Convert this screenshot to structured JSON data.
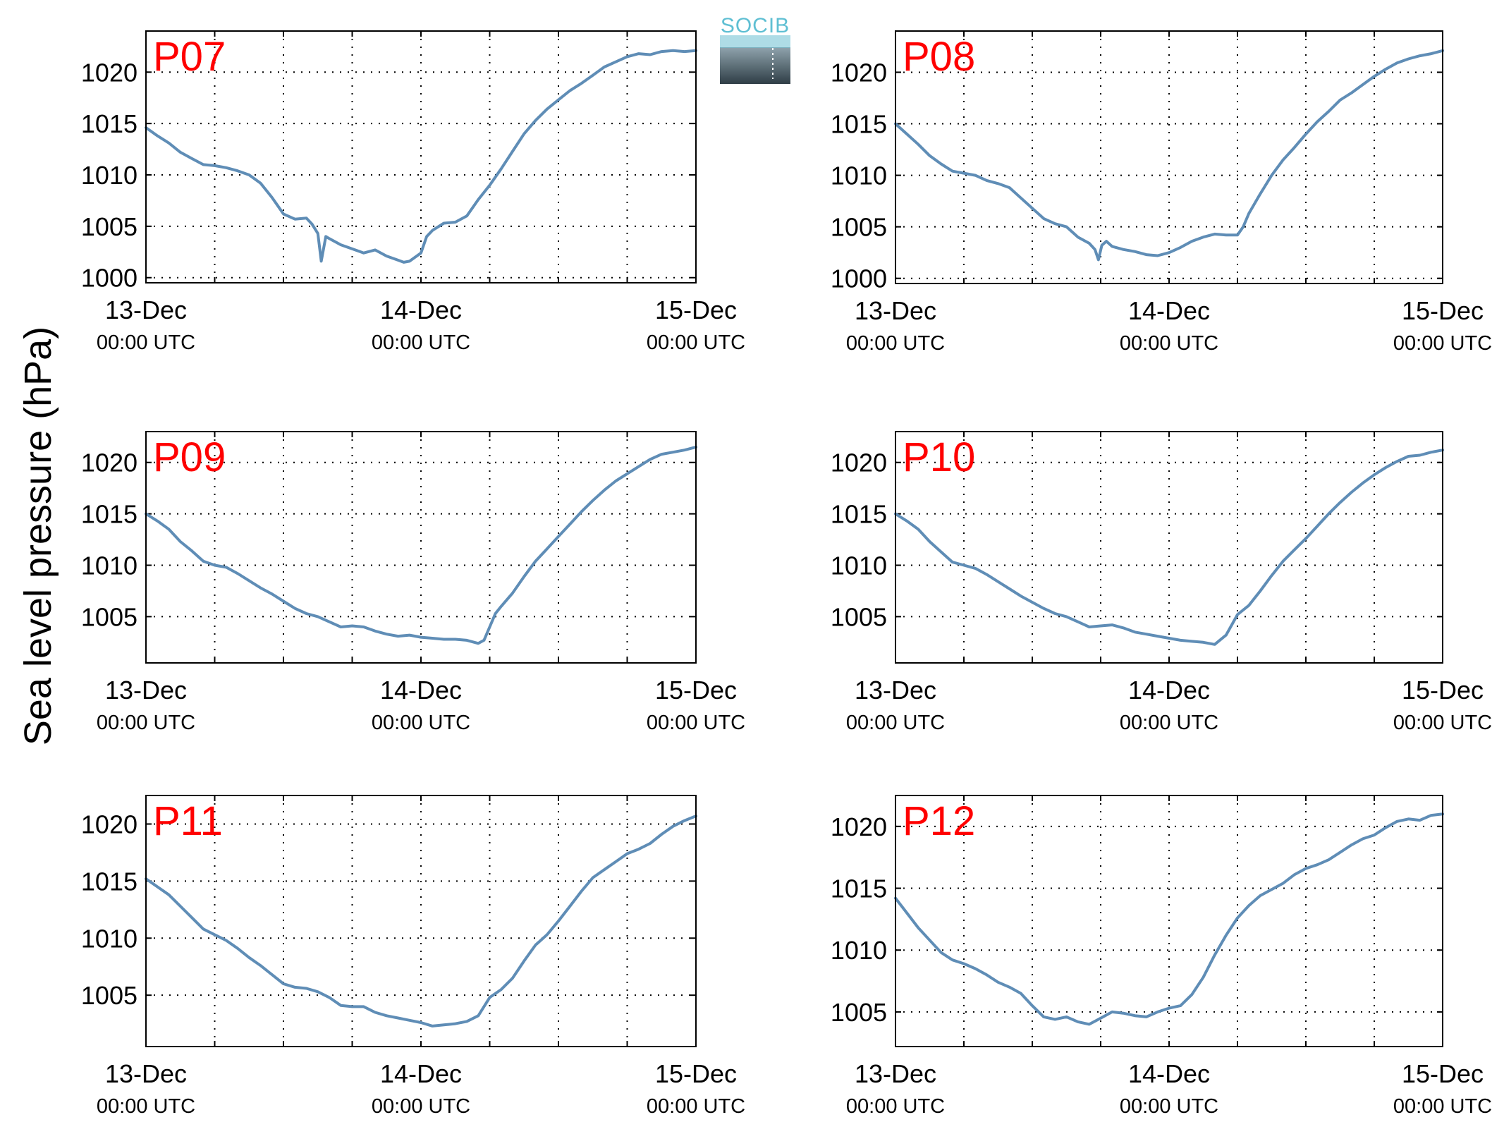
{
  "figure": {
    "ylabel": "Sea level pressure (hPa)",
    "logo_text": "SOCIB",
    "line_color": "#5f8db6",
    "title_color": "#ff0000"
  },
  "chart_data": [
    {
      "type": "line",
      "title": "P07",
      "x_ticks": [
        {
          "date": "13-Dec",
          "time": "00:00 UTC"
        },
        {
          "date": "14-Dec",
          "time": "00:00 UTC"
        },
        {
          "date": "15-Dec",
          "time": "00:00 UTC"
        }
      ],
      "y_ticks": [
        1000,
        1005,
        1010,
        1015,
        1020
      ],
      "xlim_hours": [
        0,
        48
      ],
      "ylim": [
        999.5,
        1024
      ],
      "grid": true,
      "series": [
        {
          "x_hours": [
            0,
            1,
            2,
            3,
            4,
            5,
            6,
            7,
            8,
            9,
            10,
            11,
            11.5,
            12,
            13,
            14,
            14.5,
            15,
            15.3,
            15.7,
            16,
            17,
            18,
            19,
            20,
            21,
            22,
            22.5,
            23,
            24,
            24.5,
            25,
            26,
            27,
            28,
            29,
            30,
            31,
            32,
            33,
            34,
            35,
            36,
            37,
            38,
            39,
            40,
            41,
            42,
            43,
            44,
            45,
            46,
            47,
            48
          ],
          "values": [
            1014.6,
            1013.8,
            1013.1,
            1012.2,
            1011.6,
            1011.0,
            1010.9,
            1010.7,
            1010.4,
            1010.0,
            1009.2,
            1007.8,
            1007.0,
            1006.2,
            1005.7,
            1005.8,
            1005.2,
            1004.3,
            1001.6,
            1004.0,
            1003.8,
            1003.2,
            1002.8,
            1002.4,
            1002.7,
            1002.1,
            1001.7,
            1001.5,
            1001.6,
            1002.4,
            1004.0,
            1004.6,
            1005.3,
            1005.4,
            1006.0,
            1007.6,
            1009.0,
            1010.6,
            1012.3,
            1014.0,
            1015.3,
            1016.4,
            1017.3,
            1018.2,
            1018.9,
            1019.7,
            1020.5,
            1021.0,
            1021.5,
            1021.8,
            1021.7,
            1022.0,
            1022.1,
            1022.0,
            1022.1
          ]
        }
      ]
    },
    {
      "type": "line",
      "title": "P08",
      "x_ticks": [
        {
          "date": "13-Dec",
          "time": "00:00 UTC"
        },
        {
          "date": "14-Dec",
          "time": "00:00 UTC"
        },
        {
          "date": "15-Dec",
          "time": "00:00 UTC"
        }
      ],
      "y_ticks": [
        1000,
        1005,
        1010,
        1015,
        1020
      ],
      "xlim_hours": [
        0,
        48
      ],
      "ylim": [
        999.5,
        1024
      ],
      "grid": true,
      "series": [
        {
          "x_hours": [
            0,
            1,
            2,
            3,
            4,
            5,
            6,
            7,
            8,
            9,
            10,
            11,
            12,
            13,
            14,
            15,
            16,
            17,
            17.5,
            17.8,
            18.1,
            18.5,
            19,
            20,
            21,
            22,
            23,
            24,
            25,
            26,
            27,
            28,
            29,
            30,
            30.5,
            31,
            32,
            33,
            34,
            35,
            36,
            37,
            38,
            39,
            40,
            41,
            42,
            43,
            44,
            45,
            46,
            47,
            48
          ],
          "values": [
            1015.0,
            1014.0,
            1013.0,
            1011.9,
            1011.1,
            1010.4,
            1010.2,
            1010.0,
            1009.5,
            1009.2,
            1008.8,
            1007.8,
            1006.8,
            1005.8,
            1005.3,
            1005.0,
            1004.0,
            1003.4,
            1002.8,
            1001.8,
            1003.2,
            1003.6,
            1003.1,
            1002.8,
            1002.6,
            1002.3,
            1002.2,
            1002.5,
            1003.0,
            1003.6,
            1004.0,
            1004.3,
            1004.2,
            1004.2,
            1005.0,
            1006.3,
            1008.2,
            1010.0,
            1011.5,
            1012.7,
            1014.0,
            1015.2,
            1016.2,
            1017.3,
            1018.0,
            1018.8,
            1019.6,
            1020.3,
            1020.9,
            1021.3,
            1021.6,
            1021.8,
            1022.1
          ]
        }
      ]
    },
    {
      "type": "line",
      "title": "P09",
      "x_ticks": [
        {
          "date": "13-Dec",
          "time": "00:00 UTC"
        },
        {
          "date": "14-Dec",
          "time": "00:00 UTC"
        },
        {
          "date": "15-Dec",
          "time": "00:00 UTC"
        }
      ],
      "y_ticks": [
        1005,
        1010,
        1015,
        1020
      ],
      "xlim_hours": [
        0,
        48
      ],
      "ylim": [
        1000.5,
        1023
      ],
      "grid": true,
      "series": [
        {
          "x_hours": [
            0,
            1,
            2,
            3,
            4,
            5,
            6,
            7,
            8,
            9,
            10,
            11,
            12,
            13,
            14,
            15,
            16,
            17,
            18,
            19,
            20,
            21,
            22,
            23,
            24,
            25,
            26,
            27,
            28,
            29,
            29.5,
            30,
            30.5,
            31,
            32,
            33,
            34,
            35,
            36,
            37,
            38,
            39,
            40,
            41,
            42,
            43,
            44,
            45,
            46,
            47,
            48
          ],
          "values": [
            1015.0,
            1014.3,
            1013.5,
            1012.3,
            1011.4,
            1010.4,
            1010.0,
            1009.8,
            1009.2,
            1008.5,
            1007.8,
            1007.2,
            1006.5,
            1005.8,
            1005.3,
            1005.0,
            1004.5,
            1004.0,
            1004.1,
            1004.0,
            1003.6,
            1003.3,
            1003.1,
            1003.2,
            1003.0,
            1002.9,
            1002.8,
            1002.8,
            1002.7,
            1002.4,
            1002.7,
            1004.0,
            1005.3,
            1006.0,
            1007.3,
            1008.9,
            1010.4,
            1011.6,
            1012.8,
            1014.0,
            1015.2,
            1016.3,
            1017.3,
            1018.2,
            1018.9,
            1019.6,
            1020.3,
            1020.8,
            1021.0,
            1021.2,
            1021.5
          ]
        }
      ]
    },
    {
      "type": "line",
      "title": "P10",
      "x_ticks": [
        {
          "date": "13-Dec",
          "time": "00:00 UTC"
        },
        {
          "date": "14-Dec",
          "time": "00:00 UTC"
        },
        {
          "date": "15-Dec",
          "time": "00:00 UTC"
        }
      ],
      "y_ticks": [
        1005,
        1010,
        1015,
        1020
      ],
      "xlim_hours": [
        0,
        48
      ],
      "ylim": [
        1000.5,
        1023
      ],
      "grid": true,
      "series": [
        {
          "x_hours": [
            0,
            1,
            2,
            3,
            4,
            5,
            6,
            7,
            8,
            9,
            10,
            11,
            12,
            13,
            14,
            15,
            16,
            17,
            18,
            19,
            20,
            21,
            22,
            23,
            24,
            25,
            26,
            27,
            28,
            29,
            29.5,
            30,
            31,
            32,
            33,
            34,
            35,
            36,
            37,
            38,
            39,
            40,
            41,
            42,
            43,
            44,
            45,
            46,
            47,
            48
          ],
          "values": [
            1015.0,
            1014.3,
            1013.5,
            1012.3,
            1011.3,
            1010.3,
            1010.0,
            1009.7,
            1009.1,
            1008.4,
            1007.7,
            1007.0,
            1006.4,
            1005.8,
            1005.3,
            1005.0,
            1004.5,
            1004.0,
            1004.1,
            1004.2,
            1003.9,
            1003.5,
            1003.3,
            1003.1,
            1002.9,
            1002.7,
            1002.6,
            1002.5,
            1002.3,
            1003.2,
            1004.2,
            1005.2,
            1006.1,
            1007.5,
            1009.0,
            1010.4,
            1011.5,
            1012.6,
            1013.8,
            1015.0,
            1016.1,
            1017.1,
            1018.0,
            1018.8,
            1019.5,
            1020.1,
            1020.6,
            1020.7,
            1021.0,
            1021.2
          ]
        }
      ]
    },
    {
      "type": "line",
      "title": "P11",
      "x_ticks": [
        {
          "date": "13-Dec",
          "time": "00:00 UTC"
        },
        {
          "date": "14-Dec",
          "time": "00:00 UTC"
        },
        {
          "date": "15-Dec",
          "time": "00:00 UTC"
        }
      ],
      "y_ticks": [
        1005,
        1010,
        1015,
        1020
      ],
      "xlim_hours": [
        0,
        48
      ],
      "ylim": [
        1000.5,
        1022.5
      ],
      "grid": true,
      "series": [
        {
          "x_hours": [
            0,
            1,
            2,
            3,
            4,
            5,
            6,
            7,
            8,
            9,
            10,
            11,
            12,
            13,
            14,
            15,
            16,
            17,
            18,
            19,
            20,
            21,
            22,
            23,
            24,
            25,
            26,
            27,
            28,
            29,
            30,
            31,
            32,
            33,
            34,
            35,
            36,
            37,
            38,
            39,
            40,
            41,
            42,
            43,
            44,
            45,
            46,
            47,
            48
          ],
          "values": [
            1015.2,
            1014.5,
            1013.8,
            1012.8,
            1011.8,
            1010.8,
            1010.3,
            1009.8,
            1009.1,
            1008.3,
            1007.6,
            1006.8,
            1006.0,
            1005.7,
            1005.6,
            1005.3,
            1004.8,
            1004.1,
            1004.0,
            1004.0,
            1003.5,
            1003.2,
            1003.0,
            1002.8,
            1002.6,
            1002.3,
            1002.4,
            1002.5,
            1002.7,
            1003.2,
            1004.8,
            1005.5,
            1006.5,
            1008.0,
            1009.4,
            1010.3,
            1011.5,
            1012.8,
            1014.1,
            1015.3,
            1016.0,
            1016.7,
            1017.4,
            1017.8,
            1018.3,
            1019.1,
            1019.8,
            1020.3,
            1020.7
          ]
        }
      ]
    },
    {
      "type": "line",
      "title": "P12",
      "x_ticks": [
        {
          "date": "13-Dec",
          "time": "00:00 UTC"
        },
        {
          "date": "14-Dec",
          "time": "00:00 UTC"
        },
        {
          "date": "15-Dec",
          "time": "00:00 UTC"
        }
      ],
      "y_ticks": [
        1005,
        1010,
        1015,
        1020
      ],
      "xlim_hours": [
        0,
        48
      ],
      "ylim": [
        1002.2,
        1022.5
      ],
      "grid": true,
      "series": [
        {
          "x_hours": [
            0,
            1,
            2,
            3,
            4,
            5,
            6,
            7,
            8,
            9,
            10,
            11,
            12,
            13,
            14,
            15,
            16,
            17,
            18,
            19,
            20,
            21,
            22,
            23,
            24,
            25,
            26,
            27,
            28,
            29,
            30,
            31,
            32,
            33,
            34,
            35,
            36,
            37,
            38,
            39,
            40,
            41,
            42,
            43,
            44,
            45,
            46,
            47,
            48
          ],
          "values": [
            1014.2,
            1013.0,
            1011.8,
            1010.8,
            1009.8,
            1009.2,
            1008.9,
            1008.5,
            1008.0,
            1007.4,
            1007.0,
            1006.5,
            1005.5,
            1004.6,
            1004.4,
            1004.6,
            1004.2,
            1004.0,
            1004.5,
            1005.0,
            1004.9,
            1004.7,
            1004.6,
            1005.0,
            1005.3,
            1005.5,
            1006.4,
            1007.8,
            1009.6,
            1011.2,
            1012.6,
            1013.6,
            1014.4,
            1014.9,
            1015.4,
            1016.1,
            1016.6,
            1016.9,
            1017.3,
            1017.9,
            1018.5,
            1019.0,
            1019.3,
            1019.9,
            1020.4,
            1020.6,
            1020.5,
            1020.9,
            1021.0
          ]
        }
      ]
    }
  ]
}
